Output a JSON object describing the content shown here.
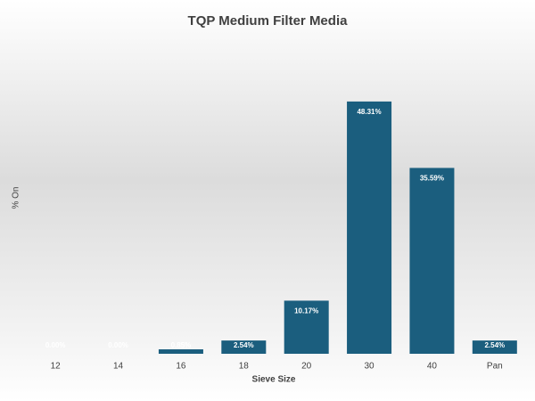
{
  "chart_data": {
    "type": "bar",
    "title": "TQP Medium Filter Media",
    "x_label": "Sieve Size",
    "y_label": "% On",
    "categories": [
      "12",
      "14",
      "16",
      "18",
      "20",
      "30",
      "40",
      "Pan"
    ],
    "values": [
      0,
      0,
      0.85,
      2.54,
      10.17,
      48.31,
      35.59,
      2.54
    ],
    "value_labels": [
      "0.00%",
      "0.00%",
      "0.85%",
      "2.54%",
      "10.17%",
      "48.31%",
      "35.59%",
      "2.54%"
    ],
    "color": "#1b5e7e",
    "ylim": [
      0,
      50
    ]
  }
}
